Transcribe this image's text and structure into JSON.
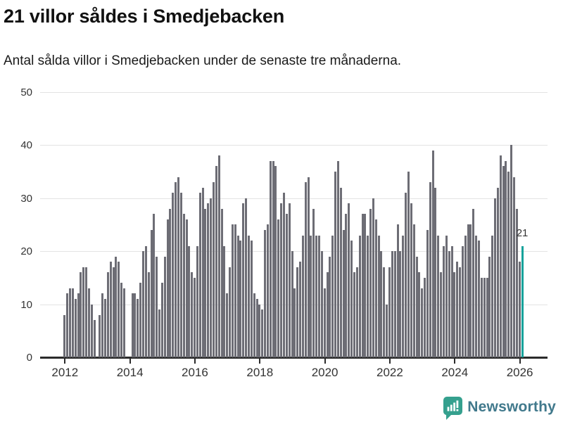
{
  "header": {
    "title": "21 villor såldes i Smedjebacken",
    "subtitle": "Antal sålda villor i Smedjebacken under de senaste tre månaderna."
  },
  "chart_data": {
    "type": "bar",
    "title": "21 villor såldes i Smedjebacken",
    "xlabel": "",
    "ylabel": "",
    "ylim": [
      0,
      50
    ],
    "y_ticks": [
      0,
      10,
      20,
      30,
      40,
      50
    ],
    "x_tick_years": [
      2012,
      2014,
      2016,
      2018,
      2020,
      2022,
      2024,
      2026
    ],
    "frequency": "monthly",
    "start_year": 2012,
    "grid": "horizontal",
    "legend": "none",
    "values": [
      8,
      12,
      13,
      13,
      11,
      12,
      16,
      17,
      17,
      13,
      10,
      7,
      0,
      8,
      12,
      11,
      16,
      18,
      17,
      19,
      18,
      14,
      13,
      0,
      0,
      12,
      12,
      11,
      14,
      20,
      21,
      16,
      24,
      27,
      19,
      9,
      14,
      19,
      26,
      28,
      31,
      33,
      34,
      31,
      27,
      26,
      21,
      16,
      15,
      21,
      31,
      32,
      28,
      29,
      30,
      33,
      36,
      38,
      28,
      21,
      12,
      17,
      25,
      25,
      23,
      22,
      29,
      30,
      23,
      22,
      12,
      11,
      10,
      9,
      24,
      25,
      37,
      37,
      36,
      26,
      29,
      31,
      27,
      29,
      20,
      13,
      17,
      18,
      23,
      33,
      34,
      23,
      28,
      23,
      23,
      20,
      13,
      16,
      19,
      23,
      35,
      37,
      32,
      24,
      27,
      29,
      22,
      16,
      17,
      23,
      27,
      27,
      23,
      28,
      30,
      26,
      23,
      20,
      17,
      10,
      17,
      20,
      20,
      25,
      20,
      23,
      31,
      35,
      29,
      25,
      19,
      16,
      13,
      15,
      24,
      33,
      39,
      32,
      23,
      16,
      21,
      23,
      20,
      21,
      16,
      18,
      17,
      21,
      23,
      25,
      25,
      28,
      23,
      22,
      15,
      15,
      15,
      19,
      23,
      30,
      32,
      38,
      36,
      37,
      35,
      40,
      34,
      28,
      18,
      21
    ],
    "highlight": {
      "index": 169,
      "value": 21,
      "label": "21"
    },
    "colors": {
      "bar": "#6d6d75",
      "highlight": "#16a29b",
      "gridline": "#e3e3e3",
      "axis": "#2b2b2b",
      "tick_text": "#333333",
      "title_text": "#111111"
    }
  },
  "footer": {
    "brand": "Newsworthy",
    "logo_icon": "speech-bubble-bar-chart",
    "colors": {
      "icon": "#35a08e",
      "icon_glyph": "#ffffff",
      "text": "#41798c"
    }
  }
}
